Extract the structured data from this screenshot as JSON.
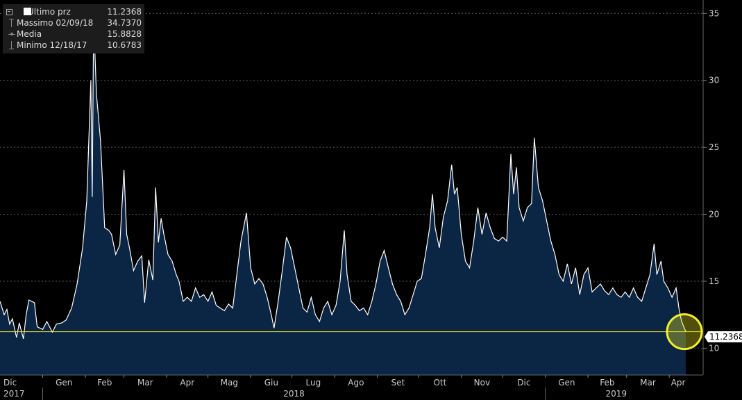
{
  "legend": [
    {
      "name": "Ultimo prz",
      "value": "11.2368",
      "symbol": "square"
    },
    {
      "name": "Massimo 02/09/18",
      "value": "34.7370",
      "symbol": "max"
    },
    {
      "name": "Media",
      "value": "15.8828",
      "symbol": "avg"
    },
    {
      "name": "Minimo 12/18/17",
      "value": "10.6783",
      "symbol": "min"
    }
  ],
  "last_price_label": "11.2368",
  "chart_data": {
    "type": "area",
    "ylim": [
      8,
      36
    ],
    "yticks": [
      10,
      15,
      20,
      25,
      30,
      35
    ],
    "grid": true,
    "last_value": 11.2368,
    "month_labels": [
      "Dic",
      "Gen",
      "Feb",
      "Mar",
      "Apr",
      "Mag",
      "Giu",
      "Lug",
      "Ago",
      "Set",
      "Ott",
      "Nov",
      "Dic",
      "Gen",
      "Feb",
      "Mar",
      "Apr"
    ],
    "year_labels": [
      "2017",
      "2018",
      "2019"
    ],
    "x_start": "2017-12-01",
    "x_end": "2019-04-13",
    "series": [
      {
        "points": [
          [
            "2017-12-01",
            13.5
          ],
          [
            "2017-12-04",
            12.5
          ],
          [
            "2017-12-06",
            12.9
          ],
          [
            "2017-12-08",
            11.8
          ],
          [
            "2017-12-10",
            12.2
          ],
          [
            "2017-12-13",
            10.8
          ],
          [
            "2017-12-15",
            11.9
          ],
          [
            "2017-12-18",
            10.7
          ],
          [
            "2017-12-20",
            12.5
          ],
          [
            "2017-12-22",
            13.6
          ],
          [
            "2017-12-26",
            13.4
          ],
          [
            "2017-12-28",
            11.6
          ],
          [
            "2018-01-01",
            11.4
          ],
          [
            "2018-01-04",
            12.0
          ],
          [
            "2018-01-08",
            11.2
          ],
          [
            "2018-01-11",
            11.8
          ],
          [
            "2018-01-15",
            11.9
          ],
          [
            "2018-01-18",
            12.1
          ],
          [
            "2018-01-22",
            13.0
          ],
          [
            "2018-01-26",
            14.8
          ],
          [
            "2018-01-30",
            17.5
          ],
          [
            "2018-02-02",
            21.0
          ],
          [
            "2018-02-05",
            30.0
          ],
          [
            "2018-02-06",
            21.3
          ],
          [
            "2018-02-07",
            34.7
          ],
          [
            "2018-02-09",
            29.0
          ],
          [
            "2018-02-12",
            25.5
          ],
          [
            "2018-02-15",
            19.0
          ],
          [
            "2018-02-18",
            18.8
          ],
          [
            "2018-02-20",
            18.5
          ],
          [
            "2018-02-23",
            17.0
          ],
          [
            "2018-02-26",
            17.7
          ],
          [
            "2018-03-01",
            23.3
          ],
          [
            "2018-03-03",
            18.5
          ],
          [
            "2018-03-05",
            17.5
          ],
          [
            "2018-03-08",
            15.8
          ],
          [
            "2018-03-11",
            16.5
          ],
          [
            "2018-03-14",
            16.9
          ],
          [
            "2018-03-16",
            13.4
          ],
          [
            "2018-03-19",
            16.6
          ],
          [
            "2018-03-22",
            15.1
          ],
          [
            "2018-03-24",
            22.0
          ],
          [
            "2018-03-26",
            17.9
          ],
          [
            "2018-03-28",
            19.7
          ],
          [
            "2018-03-30",
            18.5
          ],
          [
            "2018-04-02",
            17.0
          ],
          [
            "2018-04-05",
            16.5
          ],
          [
            "2018-04-08",
            15.5
          ],
          [
            "2018-04-10",
            15.0
          ],
          [
            "2018-04-13",
            13.5
          ],
          [
            "2018-04-16",
            13.8
          ],
          [
            "2018-04-19",
            13.5
          ],
          [
            "2018-04-22",
            14.5
          ],
          [
            "2018-04-25",
            13.8
          ],
          [
            "2018-04-28",
            14.0
          ],
          [
            "2018-05-01",
            13.5
          ],
          [
            "2018-05-04",
            14.2
          ],
          [
            "2018-05-07",
            13.2
          ],
          [
            "2018-05-10",
            13.0
          ],
          [
            "2018-05-13",
            12.8
          ],
          [
            "2018-05-16",
            13.3
          ],
          [
            "2018-05-19",
            13.0
          ],
          [
            "2018-05-22",
            15.5
          ],
          [
            "2018-05-25",
            18.0
          ],
          [
            "2018-05-29",
            20.1
          ],
          [
            "2018-06-01",
            16.0
          ],
          [
            "2018-06-04",
            14.8
          ],
          [
            "2018-06-07",
            15.2
          ],
          [
            "2018-06-10",
            14.8
          ],
          [
            "2018-06-13",
            13.8
          ],
          [
            "2018-06-16",
            12.5
          ],
          [
            "2018-06-18",
            11.5
          ],
          [
            "2018-06-21",
            13.5
          ],
          [
            "2018-06-24",
            15.8
          ],
          [
            "2018-06-27",
            18.3
          ],
          [
            "2018-06-30",
            17.5
          ],
          [
            "2018-07-03",
            16.0
          ],
          [
            "2018-07-06",
            14.5
          ],
          [
            "2018-07-09",
            13.0
          ],
          [
            "2018-07-12",
            12.7
          ],
          [
            "2018-07-15",
            13.8
          ],
          [
            "2018-07-18",
            12.5
          ],
          [
            "2018-07-21",
            12.0
          ],
          [
            "2018-07-24",
            13.0
          ],
          [
            "2018-07-27",
            13.5
          ],
          [
            "2018-07-30",
            12.5
          ],
          [
            "2018-08-02",
            13.2
          ],
          [
            "2018-08-05",
            15.0
          ],
          [
            "2018-08-08",
            18.8
          ],
          [
            "2018-08-10",
            15.5
          ],
          [
            "2018-08-13",
            13.5
          ],
          [
            "2018-08-16",
            13.2
          ],
          [
            "2018-08-19",
            12.8
          ],
          [
            "2018-08-22",
            13.0
          ],
          [
            "2018-08-25",
            12.5
          ],
          [
            "2018-08-28",
            13.5
          ],
          [
            "2018-08-31",
            14.8
          ],
          [
            "2018-09-03",
            16.5
          ],
          [
            "2018-09-06",
            17.3
          ],
          [
            "2018-09-09",
            16.0
          ],
          [
            "2018-09-12",
            14.8
          ],
          [
            "2018-09-15",
            14.0
          ],
          [
            "2018-09-18",
            13.5
          ],
          [
            "2018-09-21",
            12.5
          ],
          [
            "2018-09-24",
            13.0
          ],
          [
            "2018-09-27",
            14.0
          ],
          [
            "2018-09-30",
            15.0
          ],
          [
            "2018-10-03",
            15.2
          ],
          [
            "2018-10-06",
            17.0
          ],
          [
            "2018-10-09",
            19.0
          ],
          [
            "2018-10-11",
            21.5
          ],
          [
            "2018-10-13",
            19.0
          ],
          [
            "2018-10-16",
            17.5
          ],
          [
            "2018-10-19",
            19.8
          ],
          [
            "2018-10-22",
            21.0
          ],
          [
            "2018-10-25",
            23.7
          ],
          [
            "2018-10-27",
            21.5
          ],
          [
            "2018-10-29",
            22.0
          ],
          [
            "2018-11-01",
            18.5
          ],
          [
            "2018-11-04",
            16.5
          ],
          [
            "2018-11-07",
            16.0
          ],
          [
            "2018-11-10",
            18.0
          ],
          [
            "2018-11-13",
            20.5
          ],
          [
            "2018-11-16",
            18.5
          ],
          [
            "2018-11-19",
            20.1
          ],
          [
            "2018-11-22",
            19.0
          ],
          [
            "2018-11-25",
            18.2
          ],
          [
            "2018-11-28",
            18.0
          ],
          [
            "2018-12-01",
            18.3
          ],
          [
            "2018-12-04",
            18.0
          ],
          [
            "2018-12-07",
            24.5
          ],
          [
            "2018-12-09",
            21.5
          ],
          [
            "2018-12-11",
            23.5
          ],
          [
            "2018-12-13",
            20.5
          ],
          [
            "2018-12-16",
            19.5
          ],
          [
            "2018-12-19",
            20.5
          ],
          [
            "2018-12-22",
            20.8
          ],
          [
            "2018-12-24",
            25.7
          ],
          [
            "2018-12-27",
            22.0
          ],
          [
            "2018-12-30",
            21.0
          ],
          [
            "2019-01-02",
            19.5
          ],
          [
            "2019-01-05",
            18.0
          ],
          [
            "2019-01-08",
            17.0
          ],
          [
            "2019-01-11",
            15.5
          ],
          [
            "2019-01-14",
            15.0
          ],
          [
            "2019-01-17",
            16.3
          ],
          [
            "2019-01-20",
            14.8
          ],
          [
            "2019-01-23",
            16.0
          ],
          [
            "2019-01-26",
            14.0
          ],
          [
            "2019-01-29",
            15.5
          ],
          [
            "2019-02-01",
            16.0
          ],
          [
            "2019-02-04",
            14.2
          ],
          [
            "2019-02-07",
            14.5
          ],
          [
            "2019-02-10",
            14.8
          ],
          [
            "2019-02-13",
            14.3
          ],
          [
            "2019-02-16",
            14.0
          ],
          [
            "2019-02-19",
            14.5
          ],
          [
            "2019-02-22",
            14.0
          ],
          [
            "2019-02-25",
            13.8
          ],
          [
            "2019-02-28",
            14.2
          ],
          [
            "2019-03-03",
            13.8
          ],
          [
            "2019-03-06",
            14.5
          ],
          [
            "2019-03-09",
            13.8
          ],
          [
            "2019-03-12",
            13.5
          ],
          [
            "2019-03-15",
            14.5
          ],
          [
            "2019-03-18",
            15.5
          ],
          [
            "2019-03-21",
            17.8
          ],
          [
            "2019-03-23",
            15.5
          ],
          [
            "2019-03-26",
            16.5
          ],
          [
            "2019-03-28",
            15.0
          ],
          [
            "2019-03-31",
            14.5
          ],
          [
            "2019-04-03",
            13.8
          ],
          [
            "2019-04-06",
            14.5
          ],
          [
            "2019-04-08",
            13.0
          ],
          [
            "2019-04-10",
            12.0
          ],
          [
            "2019-04-13",
            11.2368
          ]
        ]
      }
    ]
  }
}
